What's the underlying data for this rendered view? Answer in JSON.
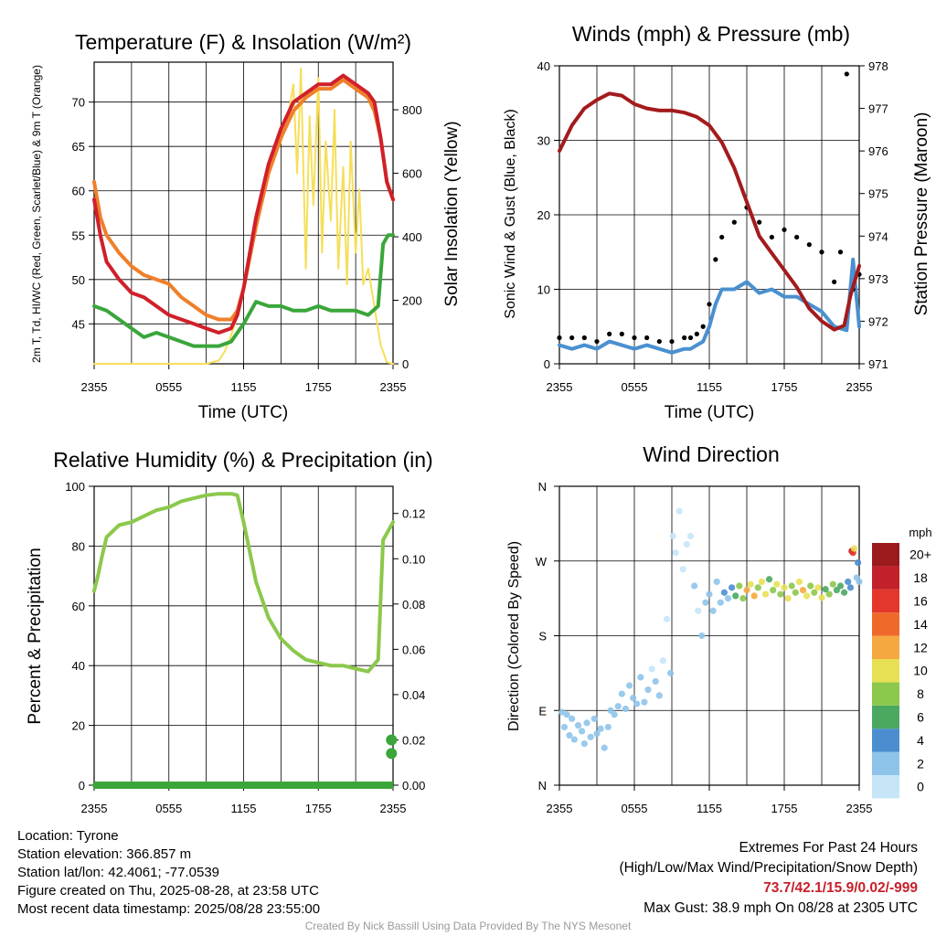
{
  "info": {
    "location": "Location: Tyrone",
    "elevation": "Station elevation: 366.857 m",
    "latlon": "Station lat/lon: 42.4061; -77.0539",
    "created": "Figure created on Thu, 2025-08-28, at 23:58 UTC",
    "recent": "Most recent data timestamp: 2025/08/28 23:55:00",
    "extremes_title": "Extremes For Past 24 Hours",
    "extremes_sub": "(High/Low/Max Wind/Precipitation/Snow Depth)",
    "extremes_values": "73.7/42.1/15.9/0.02/-999",
    "max_gust": "Max Gust: 38.9 mph On 08/28 at 2305 UTC",
    "credit": "Created By Nick Bassill Using Data Provided By The NYS Mesonet"
  },
  "colors": {
    "temp": "#d0202a",
    "dewpoint": "#3aa63a",
    "heatindex": "#f07f2a",
    "solar": "#f5df5a",
    "wind": "#4a90d0",
    "gust": "#000000",
    "pressure": "#a31b1d",
    "rh": "#8cc84b",
    "precip": "#3aa63a"
  },
  "chart_data": [
    {
      "id": "temp",
      "type": "line",
      "title": "Temperature (F) & Insolation (W/m²)",
      "xlabel": "Time (UTC)",
      "ylabel": "2m T, Td, HI/WC (Red, Green, Scarlet/Blue) & 9m T (Orange)",
      "y2label": "Solar Insolation (Yellow)",
      "x_ticks": [
        "2355",
        "0555",
        "1155",
        "1755",
        "2355"
      ],
      "xlim": [
        0,
        24
      ],
      "ylim": [
        40.5,
        74.5
      ],
      "y_ticks": [
        45,
        50,
        55,
        60,
        65,
        70
      ],
      "y2lim": [
        0,
        950
      ],
      "y2_ticks": [
        0,
        200,
        400,
        600,
        800
      ],
      "series": [
        {
          "name": "2m T",
          "color": "#d0202a",
          "axis": "y",
          "x": [
            0,
            0.5,
            1,
            2,
            3,
            4,
            5,
            6,
            7,
            8,
            9,
            10,
            11,
            11.5,
            12,
            13,
            14,
            15,
            16,
            17,
            18,
            19,
            20,
            21,
            22,
            22.5,
            23,
            23.5,
            24
          ],
          "y": [
            59,
            55,
            52,
            50,
            48.5,
            48,
            47,
            46,
            45.5,
            45,
            44.5,
            44,
            44.5,
            46,
            49,
            57,
            63,
            67,
            70,
            71,
            72,
            72,
            73,
            72,
            71,
            70,
            66,
            61,
            59
          ]
        },
        {
          "name": "9m T",
          "color": "#f07f2a",
          "axis": "y",
          "x": [
            0,
            0.5,
            1,
            2,
            3,
            4,
            5,
            6,
            7,
            8,
            9,
            10,
            11,
            11.5,
            12,
            13,
            14,
            15,
            16,
            17,
            18,
            19,
            20,
            21,
            22,
            22.5,
            23,
            23.5,
            24
          ],
          "y": [
            61,
            57,
            55,
            53,
            51.5,
            50.5,
            50,
            49.5,
            48,
            47,
            46,
            45.5,
            45.5,
            46.5,
            49,
            56,
            62,
            66,
            69,
            70.5,
            71.5,
            71.5,
            72.5,
            71.5,
            70.5,
            69,
            66,
            61,
            59
          ]
        },
        {
          "name": "Td",
          "color": "#3aa63a",
          "axis": "y",
          "x": [
            0,
            1,
            2,
            3,
            4,
            5,
            6,
            7,
            8,
            9,
            10,
            11,
            12,
            13,
            14,
            15,
            16,
            17,
            18,
            19,
            20,
            21,
            22,
            22.8,
            23.2,
            23.6,
            24
          ],
          "y": [
            47,
            46.5,
            45.5,
            44.5,
            43.5,
            44,
            43.5,
            43,
            42.5,
            42.5,
            42.5,
            43,
            45,
            47.5,
            47,
            47,
            46.5,
            46.5,
            47,
            46.5,
            46.5,
            46.5,
            46,
            47,
            54,
            55,
            55
          ]
        },
        {
          "name": "Solar",
          "color": "#f5df5a",
          "axis": "y2",
          "x": [
            0,
            9,
            10,
            10.5,
            11,
            11.5,
            12,
            12.5,
            13,
            13.5,
            14,
            14.5,
            15,
            15.5,
            16,
            16.3,
            16.6,
            17,
            17.3,
            17.6,
            18,
            18.3,
            18.6,
            19,
            19.3,
            19.6,
            20,
            20.3,
            20.6,
            21,
            21.3,
            21.6,
            22,
            22.5,
            23,
            23.5,
            24
          ],
          "y": [
            0,
            0,
            10,
            40,
            90,
            150,
            240,
            330,
            430,
            520,
            600,
            650,
            700,
            760,
            880,
            600,
            930,
            300,
            780,
            500,
            900,
            350,
            700,
            450,
            800,
            300,
            620,
            250,
            700,
            350,
            550,
            250,
            300,
            180,
            60,
            5,
            0
          ]
        }
      ]
    },
    {
      "id": "wind",
      "type": "line",
      "title": "Winds (mph) & Pressure (mb)",
      "xlabel": "Time (UTC)",
      "ylabel": "Sonic Wind & Gust (Blue, Black)",
      "y2label": "Station Pressure (Maroon)",
      "x_ticks": [
        "2355",
        "0555",
        "1155",
        "1755",
        "2355"
      ],
      "xlim": [
        0,
        24
      ],
      "ylim": [
        0,
        40
      ],
      "y_ticks": [
        0,
        10,
        20,
        30,
        40
      ],
      "y2lim": [
        971,
        978
      ],
      "y2_ticks": [
        971,
        972,
        973,
        974,
        975,
        976,
        977,
        978
      ],
      "series": [
        {
          "name": "Pressure",
          "color": "#a31b1d",
          "axis": "y2",
          "x": [
            0,
            1,
            2,
            3,
            4,
            5,
            6,
            7,
            8,
            9,
            10,
            11,
            12,
            13,
            14,
            15,
            16,
            17,
            18,
            19,
            20,
            21,
            22,
            22.8,
            23.3,
            23.7,
            24
          ],
          "y": [
            976,
            976.6,
            977,
            977.2,
            977.35,
            977.3,
            977.1,
            977,
            976.95,
            976.95,
            976.9,
            976.8,
            976.6,
            976.2,
            975.6,
            974.8,
            974,
            973.6,
            973.2,
            972.8,
            972.3,
            972,
            971.8,
            971.9,
            972.6,
            973,
            973.3
          ]
        },
        {
          "name": "Sonic Wind",
          "color": "#4a90d0",
          "axis": "y",
          "x": [
            0,
            1,
            2,
            3,
            4,
            5,
            6,
            7,
            8,
            9,
            10,
            10.5,
            11,
            11.5,
            12,
            12.5,
            13,
            14,
            15,
            16,
            17,
            18,
            19,
            20,
            21,
            22,
            23,
            23.5,
            24
          ],
          "y": [
            2.5,
            2,
            2.5,
            2,
            3,
            2.5,
            2,
            2.5,
            2,
            1.5,
            2,
            2,
            2.5,
            3,
            5,
            8,
            10,
            10,
            11,
            9.5,
            10,
            9,
            9,
            8,
            7,
            5,
            4.5,
            14,
            5
          ]
        },
        {
          "name": "Gust",
          "color": "#000000",
          "axis": "y",
          "x": [
            0,
            1,
            2,
            3,
            4,
            5,
            6,
            7,
            8,
            9,
            10,
            10.5,
            11,
            11.5,
            12,
            12.5,
            13,
            14,
            15,
            16,
            17,
            18,
            19,
            20,
            21,
            22,
            22.5,
            23,
            23.5,
            24
          ],
          "y": [
            3.5,
            3.5,
            3.5,
            3,
            4,
            4,
            3.5,
            3.5,
            3,
            3,
            3.5,
            3.5,
            4,
            5,
            8,
            14,
            17,
            19,
            21,
            19,
            17,
            18,
            17,
            16,
            15,
            11,
            15,
            38.9,
            10,
            12
          ]
        }
      ]
    },
    {
      "id": "rh",
      "type": "line",
      "title": "Relative Humidity (%) & Precipitation (in)",
      "xlabel": "",
      "ylabel": "Percent & Precipitation",
      "x_ticks": [
        "2355",
        "0555",
        "1155",
        "1755",
        "2355"
      ],
      "xlim": [
        0,
        24
      ],
      "ylim": [
        0,
        100
      ],
      "y_ticks": [
        0,
        20,
        40,
        60,
        80,
        100
      ],
      "y2lim": [
        0,
        0.132
      ],
      "y2_ticks": [
        0.0,
        0.02,
        0.04,
        0.06,
        0.08,
        0.1,
        0.12
      ],
      "series": [
        {
          "name": "RH",
          "color": "#8cc84b",
          "axis": "y",
          "x": [
            0,
            0.3,
            0.6,
            1,
            2,
            3,
            4,
            5,
            6,
            7,
            8,
            9,
            10,
            11,
            11.5,
            12,
            13,
            14,
            15,
            16,
            17,
            18,
            19,
            20,
            21,
            22,
            22.8,
            23.2,
            23.6,
            24
          ],
          "y": [
            65,
            70,
            76,
            83,
            87,
            88,
            90,
            92,
            93,
            95,
            96,
            97,
            97.5,
            97.5,
            97,
            88,
            68,
            56,
            49,
            45,
            42,
            41,
            40,
            40,
            39,
            38,
            42,
            82,
            85,
            88
          ]
        },
        {
          "name": "Precip",
          "color": "#3aa63a",
          "axis": "y2",
          "x": [
            0,
            22,
            22.5,
            23,
            23.5,
            23.7
          ],
          "y": [
            0,
            0,
            0,
            0,
            0,
            0
          ]
        },
        {
          "name": "Precip events",
          "color": "#3aa63a",
          "axis": "y2",
          "points": true,
          "x": [
            23.8,
            23.8
          ],
          "y": [
            0.014,
            0.02
          ]
        }
      ]
    },
    {
      "id": "dir",
      "type": "scatter",
      "title": "Wind Direction",
      "xlabel": "",
      "ylabel": "Direction (Colored By Speed)",
      "x_ticks": [
        "2355",
        "0555",
        "1155",
        "1755",
        "2355"
      ],
      "xlim": [
        0,
        24
      ],
      "ylim": [
        0,
        360
      ],
      "y_ticks": [
        "N",
        "E",
        "S",
        "W",
        "N"
      ],
      "legend": {
        "title": "mph",
        "levels": [
          "0",
          "2",
          "4",
          "6",
          "8",
          "10",
          "12",
          "14",
          "16",
          "18",
          "20+"
        ],
        "colors": [
          "#c6e6f8",
          "#8fc4ea",
          "#4a8ed0",
          "#4aa860",
          "#8cc84b",
          "#e8e054",
          "#f5a840",
          "#ef6a2a",
          "#e3372b",
          "#c2202a",
          "#9a1a1e"
        ]
      },
      "points": [
        [
          0.2,
          88,
          3
        ],
        [
          0.4,
          70,
          3
        ],
        [
          0.6,
          85,
          2
        ],
        [
          0.8,
          60,
          2
        ],
        [
          1.0,
          80,
          3
        ],
        [
          1.2,
          55,
          3
        ],
        [
          1.5,
          72,
          2
        ],
        [
          1.8,
          65,
          3
        ],
        [
          2.0,
          50,
          3
        ],
        [
          2.2,
          75,
          2
        ],
        [
          2.5,
          58,
          3
        ],
        [
          2.8,
          80,
          2
        ],
        [
          3.0,
          62,
          3
        ],
        [
          3.3,
          68,
          2
        ],
        [
          3.6,
          45,
          2
        ],
        [
          3.9,
          70,
          3
        ],
        [
          4.1,
          90,
          3
        ],
        [
          4.4,
          85,
          2
        ],
        [
          4.7,
          95,
          3
        ],
        [
          5.0,
          110,
          2
        ],
        [
          5.3,
          92,
          3
        ],
        [
          5.6,
          120,
          2
        ],
        [
          5.9,
          105,
          3
        ],
        [
          6.2,
          98,
          2
        ],
        [
          6.5,
          130,
          2
        ],
        [
          6.8,
          100,
          3
        ],
        [
          7.1,
          115,
          2
        ],
        [
          7.4,
          140,
          1
        ],
        [
          7.7,
          125,
          2
        ],
        [
          8.0,
          108,
          2
        ],
        [
          8.3,
          150,
          1
        ],
        [
          8.6,
          200,
          1
        ],
        [
          8.9,
          135,
          2
        ],
        [
          9.1,
          300,
          1
        ],
        [
          9.3,
          280,
          1
        ],
        [
          9.6,
          330,
          1
        ],
        [
          9.9,
          260,
          1
        ],
        [
          10.2,
          290,
          1
        ],
        [
          10.5,
          300,
          1
        ],
        [
          10.8,
          240,
          2
        ],
        [
          11.1,
          210,
          1
        ],
        [
          11.4,
          180,
          2
        ],
        [
          11.7,
          220,
          3
        ],
        [
          12.0,
          230,
          3
        ],
        [
          12.3,
          210,
          2
        ],
        [
          12.6,
          245,
          3
        ],
        [
          12.9,
          220,
          3
        ],
        [
          13.2,
          232,
          4
        ],
        [
          13.5,
          225,
          3
        ],
        [
          13.8,
          238,
          5
        ],
        [
          14.1,
          228,
          6
        ],
        [
          14.4,
          240,
          8
        ],
        [
          14.7,
          225,
          9
        ],
        [
          15.0,
          235,
          12
        ],
        [
          15.3,
          242,
          10
        ],
        [
          15.6,
          228,
          13
        ],
        [
          15.9,
          238,
          9
        ],
        [
          16.2,
          245,
          11
        ],
        [
          16.5,
          230,
          10
        ],
        [
          16.8,
          248,
          7
        ],
        [
          17.1,
          235,
          8
        ],
        [
          17.4,
          242,
          10
        ],
        [
          17.7,
          230,
          9
        ],
        [
          18.0,
          238,
          11
        ],
        [
          18.3,
          225,
          10
        ],
        [
          18.6,
          240,
          8
        ],
        [
          18.9,
          232,
          9
        ],
        [
          19.2,
          245,
          11
        ],
        [
          19.5,
          235,
          12
        ],
        [
          19.8,
          228,
          10
        ],
        [
          20.1,
          240,
          8
        ],
        [
          20.4,
          232,
          9
        ],
        [
          20.7,
          238,
          10
        ],
        [
          21.0,
          226,
          11
        ],
        [
          21.3,
          236,
          7
        ],
        [
          21.6,
          230,
          8
        ],
        [
          21.9,
          242,
          9
        ],
        [
          22.2,
          235,
          7
        ],
        [
          22.5,
          240,
          6
        ],
        [
          22.8,
          232,
          6
        ],
        [
          23.1,
          245,
          5
        ],
        [
          23.3,
          238,
          4
        ],
        [
          23.4,
          282,
          18
        ],
        [
          23.5,
          280,
          16
        ],
        [
          23.6,
          285,
          10
        ],
        [
          23.8,
          250,
          3
        ],
        [
          23.9,
          268,
          4
        ],
        [
          24.0,
          245,
          3
        ]
      ]
    }
  ]
}
